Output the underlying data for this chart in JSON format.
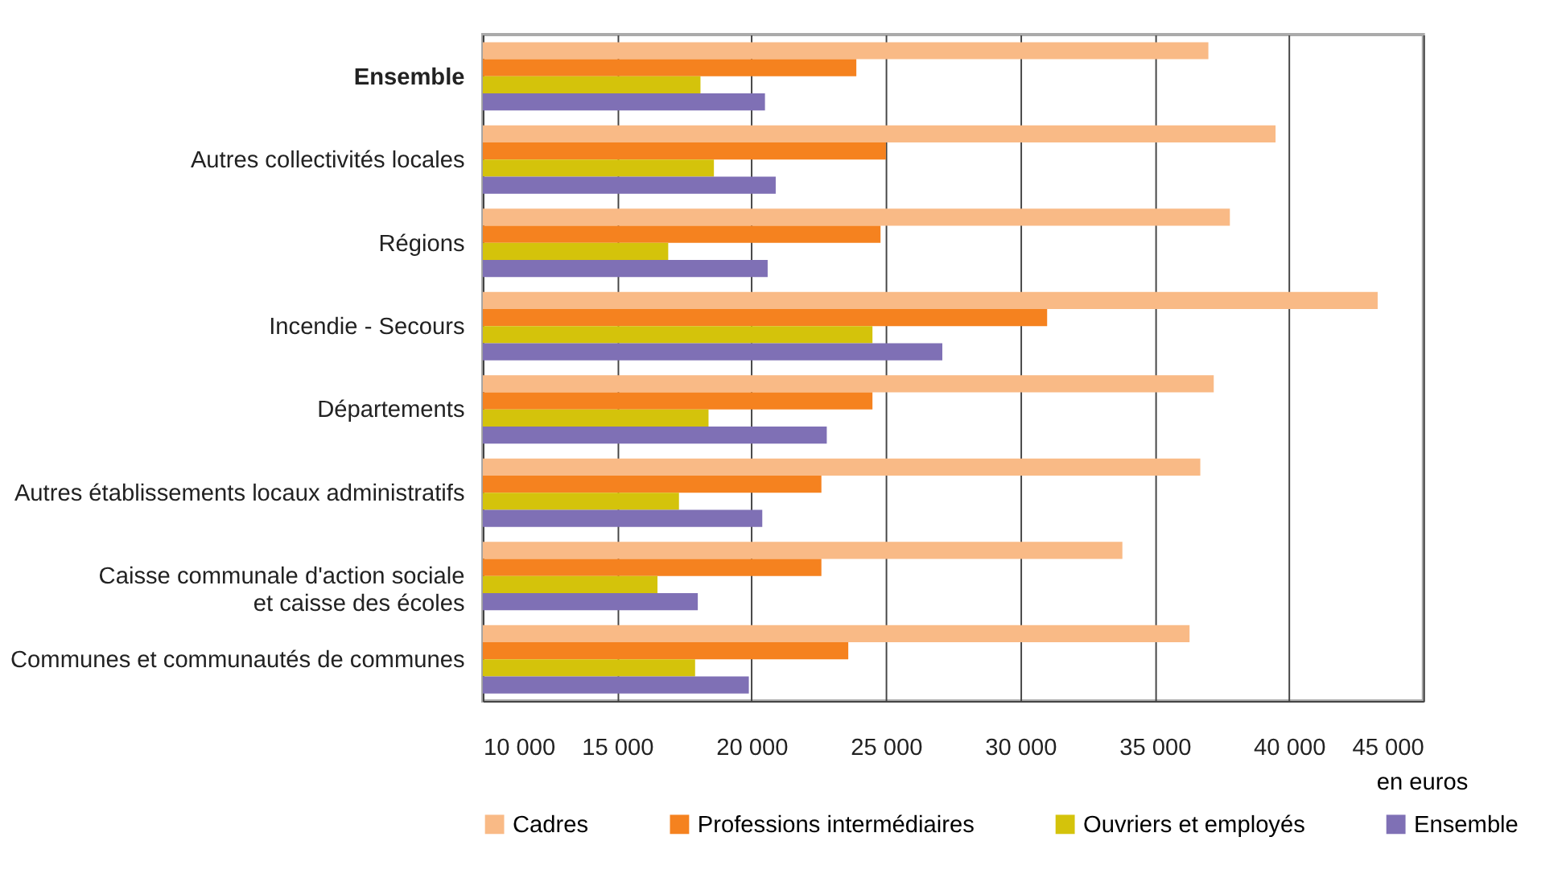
{
  "chart_data": {
    "type": "bar",
    "orientation": "horizontal",
    "xlabel": "en euros",
    "categories": [
      "Ensemble",
      "Autres collectivités locales",
      "Régions",
      "Incendie - Secours",
      "Départements",
      "Autres établissements locaux administratifs",
      "Caisse communale d'action sociale\net caisse des écoles",
      "Communes et communautés de communes"
    ],
    "series": [
      {
        "name": "Cadres",
        "color": "#f9ba86",
        "values": [
          37000,
          39500,
          37800,
          43300,
          37200,
          36700,
          33800,
          36300
        ]
      },
      {
        "name": "Professions intermédiaires",
        "color": "#f5821f",
        "values": [
          23900,
          25000,
          24800,
          31000,
          24500,
          22600,
          22600,
          23600
        ]
      },
      {
        "name": "Ouvriers et employés",
        "color": "#d4c30b",
        "values": [
          18100,
          18600,
          16900,
          24500,
          18400,
          17300,
          16500,
          17900
        ]
      },
      {
        "name": "Ensemble",
        "color": "#7f70b5",
        "values": [
          20500,
          20900,
          20600,
          27100,
          22800,
          20400,
          18000,
          19900
        ]
      }
    ],
    "xlim": [
      10000,
      45000
    ],
    "xticks": [
      {
        "value": 10000,
        "label": "10 000"
      },
      {
        "value": 15000,
        "label": "15 000"
      },
      {
        "value": 20000,
        "label": "20 000"
      },
      {
        "value": 25000,
        "label": "25 000"
      },
      {
        "value": 30000,
        "label": "30 000"
      },
      {
        "value": 35000,
        "label": "35 000"
      },
      {
        "value": 40000,
        "label": "40 000"
      },
      {
        "value": 45000,
        "label": "45 000"
      }
    ],
    "grid": "x",
    "legend": "bottom"
  }
}
